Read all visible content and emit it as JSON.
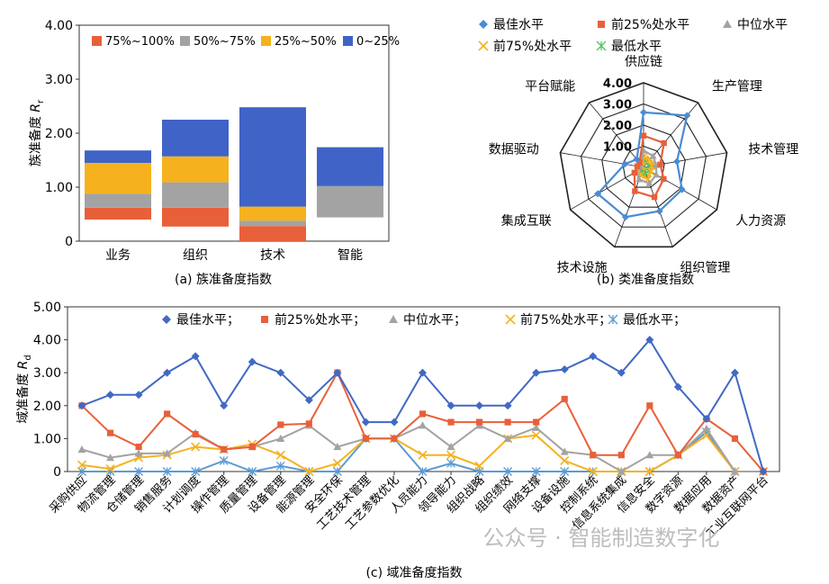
{
  "figure": {
    "watermark": "公众号 · 智能制造数字化"
  },
  "charts": [
    {
      "type": "bar",
      "stacked": true,
      "caption": "(a) 族准备度指数",
      "ylabel": "族准备度",
      "ylabel_symbol": "R",
      "ylabel_sub": "r",
      "ylim": [
        0,
        4
      ],
      "yticks": [
        "0",
        "1.00",
        "2.00",
        "3.00",
        "4.00"
      ],
      "categories": [
        "业务",
        "组织",
        "技术",
        "智能"
      ],
      "legend_position": "top",
      "series": [
        {
          "name": "75%~100%",
          "color": "#E8603A",
          "values": [
            0.22,
            0.35,
            0.28,
            0
          ]
        },
        {
          "name": "50%~75%",
          "color": "#A3A3A3",
          "values": [
            0.26,
            0.47,
            0.1,
            0.58
          ]
        },
        {
          "name": "25%~50%",
          "color": "#F5B21E",
          "values": [
            0.57,
            0.48,
            0.26,
            0
          ]
        },
        {
          "name": "0~25%",
          "color": "#3F63C7",
          "values": [
            0.23,
            0.68,
            1.84,
            0.72
          ]
        }
      ],
      "bases": [
        0.4,
        0.27,
        0.0,
        0.44
      ]
    },
    {
      "type": "radar",
      "caption": "(b) 类准备度指数",
      "rmax": 4,
      "rticks": [
        "1.00",
        "2.00",
        "3.00",
        "4.00"
      ],
      "axes": [
        "供应链",
        "生产管理",
        "技术管理",
        "人力资源",
        "组织管理",
        "技术设施",
        "集成互联",
        "数据驱动",
        "平台赋能"
      ],
      "series": [
        {
          "name": "最佳水平",
          "color": "#4A8BD4",
          "marker": "diamond",
          "values": [
            2.6,
            3.2,
            1.6,
            2.1,
            2.2,
            2.5,
            2.5,
            0.9,
            0.5
          ]
        },
        {
          "name": "前25%处水平",
          "color": "#E8603A",
          "marker": "square",
          "values": [
            1.5,
            1.5,
            0.8,
            1.1,
            1.5,
            1.2,
            0.5,
            0.3,
            0.3
          ]
        },
        {
          "name": "中位水平",
          "color": "#A3A3A3",
          "marker": "triangle",
          "values": [
            0.8,
            0.7,
            0.6,
            0.7,
            0.8,
            0.6,
            0.4,
            0.2,
            0.2
          ]
        },
        {
          "name": "前75%处水平",
          "color": "#F5B21E",
          "marker": "x",
          "values": [
            0.5,
            0.5,
            0.4,
            0.4,
            0.6,
            0.4,
            0.3,
            0.1,
            0.1
          ]
        },
        {
          "name": "最低水平",
          "color": "#56C25E",
          "marker": "star",
          "values": [
            0.3,
            0.3,
            0.3,
            0.3,
            0.3,
            0.3,
            0.2,
            0.1,
            0.1
          ]
        }
      ]
    },
    {
      "type": "line",
      "caption": "(c) 域准备度指数",
      "ylabel": "域准备度",
      "ylabel_symbol": "R",
      "ylabel_sub": "d",
      "ylim": [
        0,
        5
      ],
      "yticks": [
        "0",
        "1.00",
        "2.00",
        "3.00",
        "4.00",
        "5.00"
      ],
      "categories": [
        "采购供应",
        "物流管理",
        "仓储管理",
        "销售服务",
        "计划调度",
        "操作管理",
        "质量管理",
        "设备管理",
        "能源管理",
        "安全环保",
        "工艺技术管理",
        "工艺参数优化",
        "人员能力",
        "领导能力",
        "组织战略",
        "组织绩效",
        "网络支撑",
        "设备设施",
        "控制系统",
        "信息系统集成",
        "信息安全",
        "数字资源",
        "数据应用",
        "数据资产",
        "工业互联网平台"
      ],
      "legend_position": "top",
      "series": [
        {
          "name": "最佳水平；",
          "color": "#4169C4",
          "marker": "diamond",
          "values": [
            2.0,
            2.33,
            2.33,
            3.0,
            3.5,
            2.0,
            3.33,
            3.0,
            2.17,
            3.0,
            1.5,
            1.5,
            3.0,
            2.0,
            2.0,
            2.0,
            3.0,
            3.1,
            3.5,
            3.0,
            4.0,
            2.57,
            1.6,
            3.0,
            0
          ]
        },
        {
          "name": "前25%处水平；",
          "color": "#E8603A",
          "marker": "square",
          "values": [
            2.0,
            1.17,
            0.75,
            1.75,
            1.13,
            0.67,
            0.75,
            1.42,
            1.45,
            3.0,
            1.0,
            1.0,
            1.75,
            1.5,
            1.5,
            1.5,
            1.5,
            2.2,
            0.5,
            0.5,
            2.0,
            0.5,
            1.6,
            1.0,
            0
          ]
        },
        {
          "name": "中位水平；",
          "color": "#A3A3A3",
          "marker": "triangle",
          "values": [
            0.67,
            0.42,
            0.55,
            0.55,
            1.17,
            0.67,
            0.75,
            1.0,
            1.4,
            0.75,
            1.0,
            1.0,
            1.4,
            0.75,
            1.4,
            1.0,
            1.33,
            0.6,
            0.5,
            0,
            0.5,
            0.5,
            1.3,
            0,
            0
          ]
        },
        {
          "name": "前75%处水平；",
          "color": "#F5B21E",
          "marker": "x",
          "values": [
            0.2,
            0.08,
            0.42,
            0.5,
            0.75,
            0.67,
            0.83,
            0.5,
            0,
            0.25,
            1.0,
            1.0,
            0.5,
            0.5,
            0.17,
            1.0,
            1.1,
            0.33,
            0,
            0,
            0,
            0.5,
            1.1,
            0,
            0
          ]
        },
        {
          "name": "最低水平；",
          "color": "#5B9BD5",
          "marker": "star",
          "values": [
            0,
            0,
            0,
            0,
            0,
            0.33,
            0,
            0.17,
            0,
            0,
            1.0,
            1.0,
            0,
            0.25,
            0,
            0,
            0,
            0,
            0,
            0,
            0,
            0.5,
            1.2,
            0,
            0
          ]
        }
      ]
    }
  ]
}
